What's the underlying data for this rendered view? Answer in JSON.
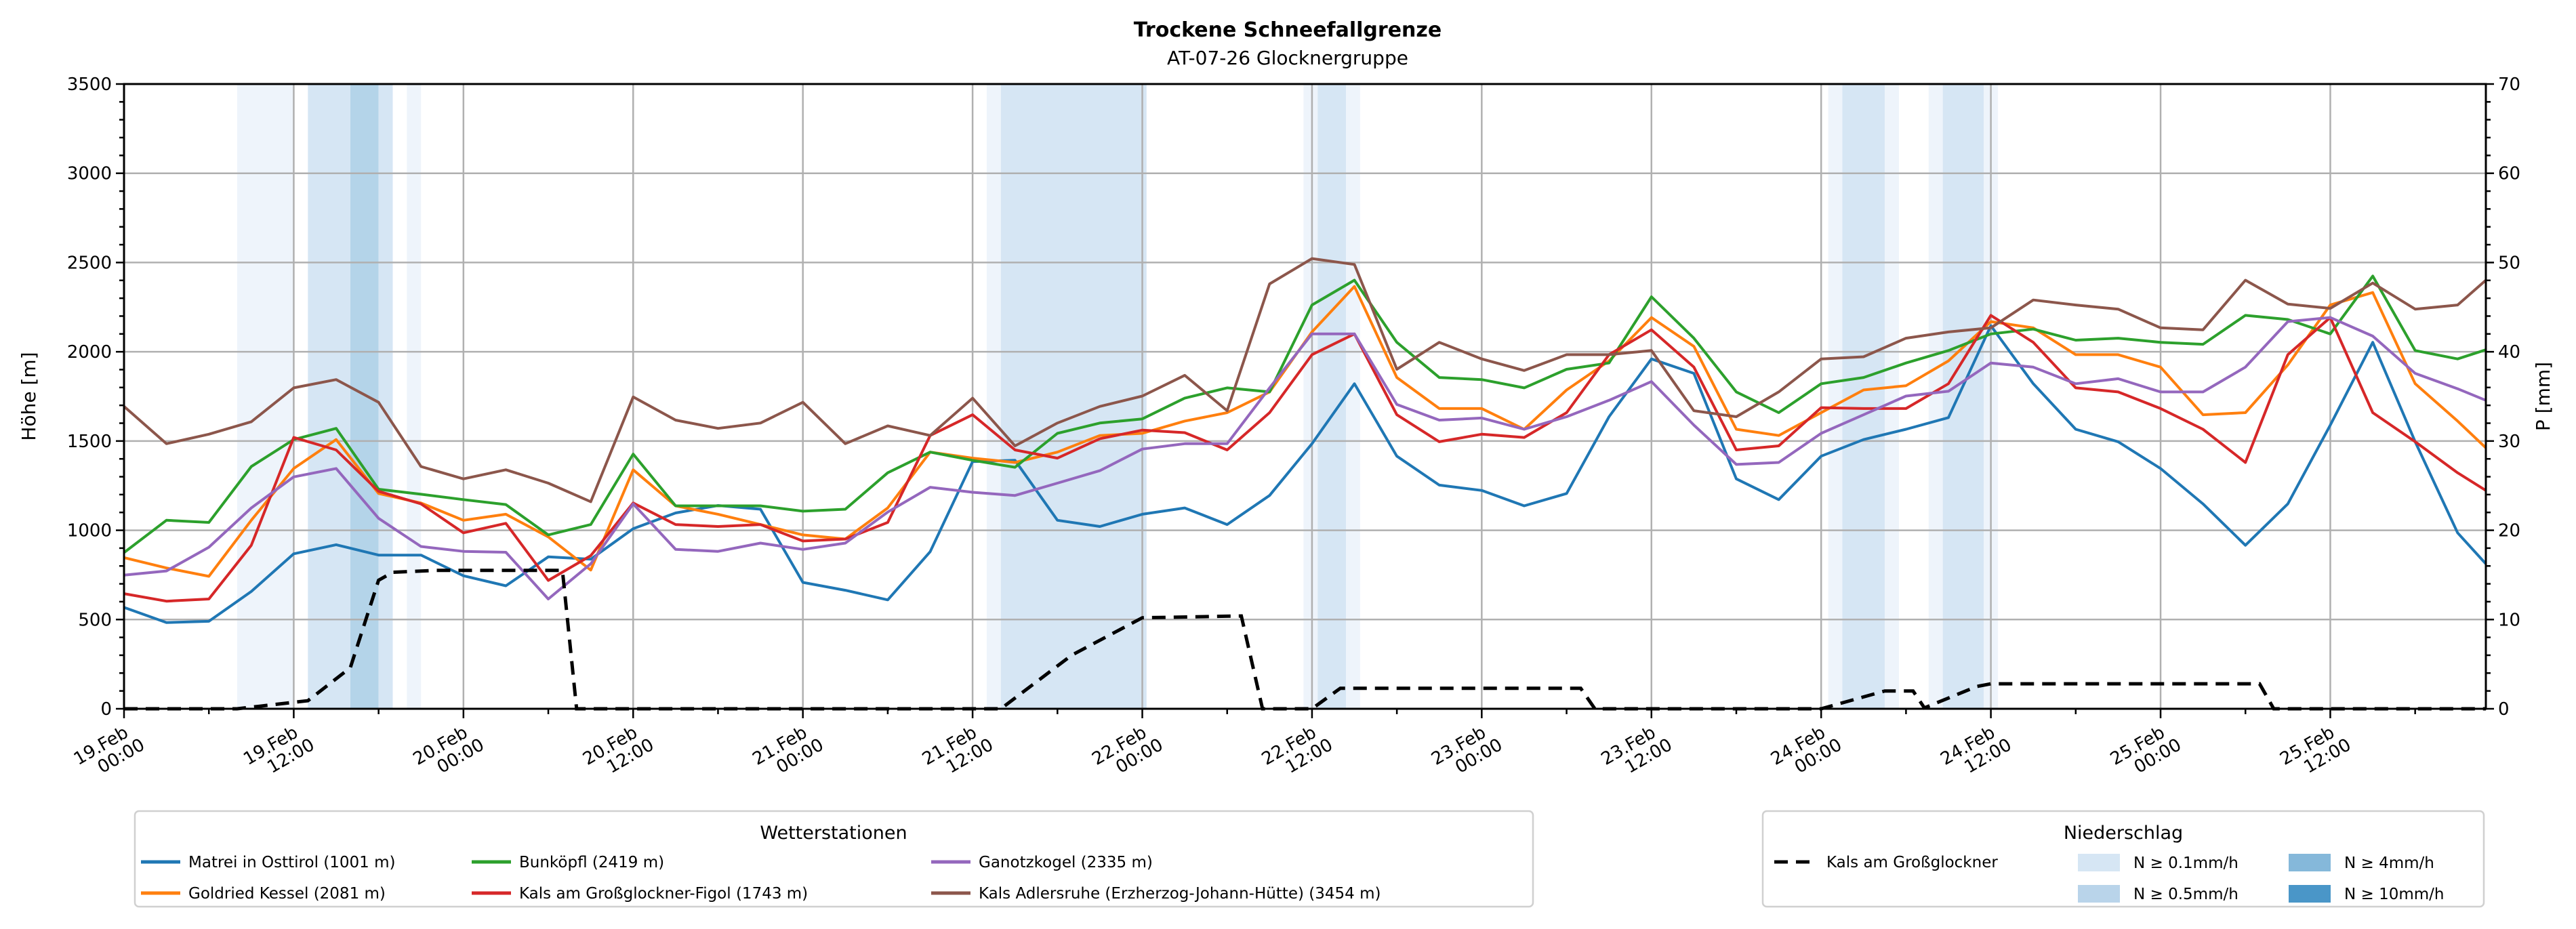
{
  "chart_data": {
    "type": "line",
    "title": "Trockene Schneefallgrenze",
    "subtitle": "AT-07-26 Glocknergruppe",
    "ylabel": "Höhe [m]",
    "y2label": "P [mm]",
    "ylim": [
      0,
      3500
    ],
    "y2lim": [
      0,
      70
    ],
    "xlim_hours": [
      0,
      167
    ],
    "grid": true,
    "yticks": [
      "0",
      "500",
      "1000",
      "1500",
      "2000",
      "2500",
      "3000",
      "3500"
    ],
    "y2ticks": [
      "0",
      "10",
      "20",
      "30",
      "40",
      "50",
      "60",
      "70"
    ],
    "xticks": [
      {
        "hour": 0,
        "line1": "19.Feb",
        "line2": "00:00"
      },
      {
        "hour": 12,
        "line1": "19.Feb",
        "line2": "12:00"
      },
      {
        "hour": 24,
        "line1": "20.Feb",
        "line2": "00:00"
      },
      {
        "hour": 36,
        "line1": "20.Feb",
        "line2": "12:00"
      },
      {
        "hour": 48,
        "line1": "21.Feb",
        "line2": "00:00"
      },
      {
        "hour": 60,
        "line1": "21.Feb",
        "line2": "12:00"
      },
      {
        "hour": 72,
        "line1": "22.Feb",
        "line2": "00:00"
      },
      {
        "hour": 84,
        "line1": "22.Feb",
        "line2": "12:00"
      },
      {
        "hour": 96,
        "line1": "23.Feb",
        "line2": "00:00"
      },
      {
        "hour": 108,
        "line1": "23.Feb",
        "line2": "12:00"
      },
      {
        "hour": 120,
        "line1": "24.Feb",
        "line2": "00:00"
      },
      {
        "hour": 132,
        "line1": "24.Feb",
        "line2": "12:00"
      },
      {
        "hour": 144,
        "line1": "25.Feb",
        "line2": "00:00"
      },
      {
        "hour": 156,
        "line1": "25.Feb",
        "line2": "12:00"
      }
    ],
    "x_hours": [
      0,
      3,
      6,
      9,
      12,
      15,
      18,
      21,
      24,
      27,
      30,
      33,
      36,
      39,
      42,
      45,
      48,
      51,
      54,
      57,
      60,
      63,
      66,
      69,
      72,
      75,
      78,
      81,
      84,
      87,
      90,
      93,
      96,
      99,
      102,
      105,
      108,
      111,
      114,
      117,
      120,
      123,
      126,
      129,
      132,
      135,
      138,
      141,
      144,
      147,
      150,
      153,
      156,
      159,
      162,
      165,
      167
    ],
    "series": [
      {
        "name": "Matrei in Osttirol (1001 m)",
        "color": "#1f77b4",
        "values": [
          568,
          483,
          490,
          657,
          868,
          919,
          861,
          861,
          745,
          689,
          851,
          838,
          1009,
          1097,
          1139,
          1118,
          708,
          664,
          610,
          880,
          1385,
          1392,
          1056,
          1021,
          1090,
          1125,
          1032,
          1195,
          1485,
          1821,
          1415,
          1253,
          1223,
          1137,
          1206,
          1636,
          1960,
          1879,
          1288,
          1172,
          1415,
          1508,
          1566,
          1631,
          2146,
          1821,
          1566,
          1496,
          1346,
          1148,
          916,
          1148,
          1589,
          2053,
          1496,
          986,
          812
        ]
      },
      {
        "name": "Goldried Kessel (2081 m)",
        "color": "#ff7f0e",
        "values": [
          847,
          789,
          742,
          1056,
          1346,
          1508,
          1206,
          1153,
          1056,
          1090,
          963,
          777,
          1339,
          1137,
          1090,
          1032,
          974,
          951,
          1125,
          1438,
          1404,
          1380,
          1438,
          1531,
          1543,
          1612,
          1659,
          1775,
          2111,
          2366,
          1856,
          1682,
          1682,
          1566,
          1786,
          1949,
          2192,
          2030,
          1566,
          1531,
          1659,
          1786,
          1810,
          1949,
          2169,
          2134,
          1984,
          1984,
          1914,
          1647,
          1659,
          1926,
          2262,
          2332,
          1821,
          1612,
          1462
        ]
      },
      {
        "name": "Bunköpfl (2419 m)",
        "color": "#2ca02c",
        "values": [
          875,
          1056,
          1044,
          1357,
          1508,
          1571,
          1230,
          1202,
          1172,
          1144,
          974,
          1032,
          1427,
          1137,
          1137,
          1137,
          1107,
          1118,
          1322,
          1438,
          1392,
          1353,
          1543,
          1601,
          1624,
          1740,
          1798,
          1775,
          2262,
          2401,
          2053,
          1856,
          1844,
          1798,
          1902,
          1937,
          2308,
          2076,
          1775,
          1659,
          1821,
          1856,
          1937,
          2007,
          2100,
          2127,
          2065,
          2076,
          2053,
          2042,
          2204,
          2181,
          2100,
          2424,
          2007,
          1960,
          2011
        ]
      },
      {
        "name": "Kals am Großglockner-Figol (1743 m)",
        "color": "#d62728",
        "values": [
          645,
          603,
          615,
          916,
          1520,
          1450,
          1218,
          1148,
          986,
          1039,
          719,
          858,
          1153,
          1032,
          1021,
          1032,
          940,
          951,
          1044,
          1531,
          1647,
          1450,
          1404,
          1513,
          1561,
          1547,
          1450,
          1659,
          1984,
          2100,
          1647,
          1496,
          1538,
          1520,
          1659,
          1984,
          2123,
          1914,
          1450,
          1473,
          1687,
          1682,
          1682,
          1821,
          2204,
          2053,
          1798,
          1775,
          1682,
          1566,
          1380,
          1984,
          2192,
          1659,
          1496,
          1322,
          1223
        ]
      },
      {
        "name": "Ganotzkogel (2335 m)",
        "color": "#9467bd",
        "values": [
          749,
          772,
          905,
          1125,
          1299,
          1346,
          1067,
          909,
          882,
          877,
          615,
          812,
          1148,
          893,
          882,
          928,
          893,
          928,
          1102,
          1241,
          1213,
          1195,
          1264,
          1334,
          1455,
          1485,
          1485,
          1798,
          2100,
          2100,
          1705,
          1617,
          1629,
          1566,
          1636,
          1728,
          1833,
          1589,
          1369,
          1380,
          1543,
          1647,
          1752,
          1779,
          1937,
          1914,
          1821,
          1849,
          1775,
          1775,
          1914,
          2169,
          2192,
          2088,
          1879,
          1793,
          1728
        ]
      },
      {
        "name": "Kals Adlersruhe (Erzherzog-Johann-Hütte) (3454 m)",
        "color": "#8c564b",
        "values": [
          1694,
          1485,
          1538,
          1608,
          1798,
          1844,
          1717,
          1357,
          1288,
          1339,
          1264,
          1160,
          1747,
          1617,
          1571,
          1601,
          1717,
          1485,
          1585,
          1531,
          1740,
          1473,
          1601,
          1694,
          1752,
          1868,
          1670,
          2380,
          2522,
          2489,
          1902,
          2053,
          1960,
          1895,
          1984,
          1984,
          2007,
          1670,
          1636,
          1775,
          1960,
          1972,
          2076,
          2111,
          2134,
          2290,
          2262,
          2239,
          2134,
          2123,
          2401,
          2267,
          2243,
          2385,
          2239,
          2262,
          2401
        ]
      }
    ],
    "precipitation": {
      "name": "Kals am Großglockner",
      "unit": "mm",
      "points": [
        [
          0,
          0
        ],
        [
          8,
          0
        ],
        [
          13,
          0.9
        ],
        [
          16,
          4.6
        ],
        [
          18,
          14.4
        ],
        [
          19,
          15.3
        ],
        [
          22,
          15.5
        ],
        [
          31,
          15.5
        ],
        [
          32,
          0
        ],
        [
          62,
          0
        ],
        [
          67,
          6.0
        ],
        [
          72,
          10.2
        ],
        [
          79,
          10.4
        ],
        [
          80.5,
          0
        ],
        [
          84,
          0
        ],
        [
          86,
          2.3
        ],
        [
          103,
          2.3
        ],
        [
          104,
          0
        ],
        [
          120,
          0
        ],
        [
          124.5,
          2.0
        ],
        [
          126.5,
          2.0
        ],
        [
          127.3,
          0.1
        ],
        [
          131,
          2.5
        ],
        [
          132,
          2.8
        ],
        [
          151,
          2.8
        ],
        [
          152,
          0
        ],
        [
          167,
          0
        ]
      ]
    },
    "intensity_bands": [
      {
        "from": 8,
        "to": 12,
        "level": 1
      },
      {
        "from": 13,
        "to": 16,
        "level": 2
      },
      {
        "from": 16,
        "to": 18,
        "level": 3
      },
      {
        "from": 18,
        "to": 19,
        "level": 2
      },
      {
        "from": 20,
        "to": 21,
        "level": 1
      },
      {
        "from": 61,
        "to": 62,
        "level": 1
      },
      {
        "from": 62,
        "to": 72.3,
        "level": 2
      },
      {
        "from": 83.4,
        "to": 84.4,
        "level": 1
      },
      {
        "from": 84.4,
        "to": 86.4,
        "level": 2
      },
      {
        "from": 86.4,
        "to": 87.4,
        "level": 1
      },
      {
        "from": 120.5,
        "to": 121.5,
        "level": 1
      },
      {
        "from": 121.5,
        "to": 124.5,
        "level": 2
      },
      {
        "from": 124.5,
        "to": 125.5,
        "level": 1
      },
      {
        "from": 127.6,
        "to": 128.6,
        "level": 1
      },
      {
        "from": 128.6,
        "to": 131.5,
        "level": 2
      },
      {
        "from": 131.5,
        "to": 132.5,
        "level": 1
      }
    ],
    "band_colors": {
      "1": "#eef4fb",
      "2": "#d6e6f4",
      "3": "#b4d4e9"
    },
    "legend_stations": {
      "title": "Wetterstationen",
      "placement": "bottom-left"
    },
    "legend_precip": {
      "title": "Niederschlag",
      "placement": "bottom-right",
      "line_label": "Kals am Großglockner",
      "items": [
        {
          "label": "N ≥ 0.1mm/h",
          "color": "#d6e6f4"
        },
        {
          "label": "N ≥ 0.5mm/h",
          "color": "#b9d4ea"
        },
        {
          "label": "N ≥ 4mm/h",
          "color": "#85b8da"
        },
        {
          "label": "N ≥ 10mm/h",
          "color": "#4a96c8"
        }
      ]
    }
  }
}
